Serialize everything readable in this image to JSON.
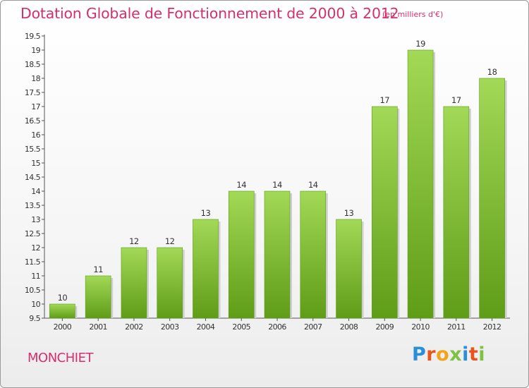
{
  "title": "Dotation Globale de Fonctionnement de 2000 à 2012",
  "subtitle": "(en milliers d'€)",
  "place": "MONCHIET",
  "brand": {
    "letters": [
      "P",
      "r",
      "o",
      "x",
      "i",
      "t",
      "i"
    ],
    "colors": [
      "#2a8fd6",
      "#e8541c",
      "#f2a51a",
      "#7cc243",
      "#2a8fd6",
      "#e8541c",
      "#7cc243"
    ]
  },
  "colors": {
    "bar": "#7fc12f",
    "bar_light": "#a2d956",
    "bar_dark": "#5f9c18",
    "title": "#d4306c"
  },
  "chart_data": {
    "type": "bar",
    "title": "Dotation Globale de Fonctionnement de 2000 à 2012",
    "subtitle": "(en milliers d'€)",
    "categories": [
      "2000",
      "2001",
      "2002",
      "2003",
      "2004",
      "2005",
      "2006",
      "2007",
      "2008",
      "2009",
      "2010",
      "2011",
      "2012"
    ],
    "values": [
      10,
      11,
      12,
      12,
      13,
      14,
      14,
      14,
      13,
      17,
      19,
      17,
      18
    ],
    "ylim": [
      9.5,
      19.5
    ],
    "yticks": [
      "9.5",
      "10",
      "10.5",
      "11",
      "11.5",
      "12",
      "12.5",
      "13",
      "13.5",
      "14",
      "14.5",
      "15",
      "15.5",
      "16",
      "16.5",
      "17",
      "17.5",
      "18",
      "18.5",
      "19",
      "19.5"
    ],
    "grid": false,
    "xlabel": "",
    "ylabel": ""
  }
}
